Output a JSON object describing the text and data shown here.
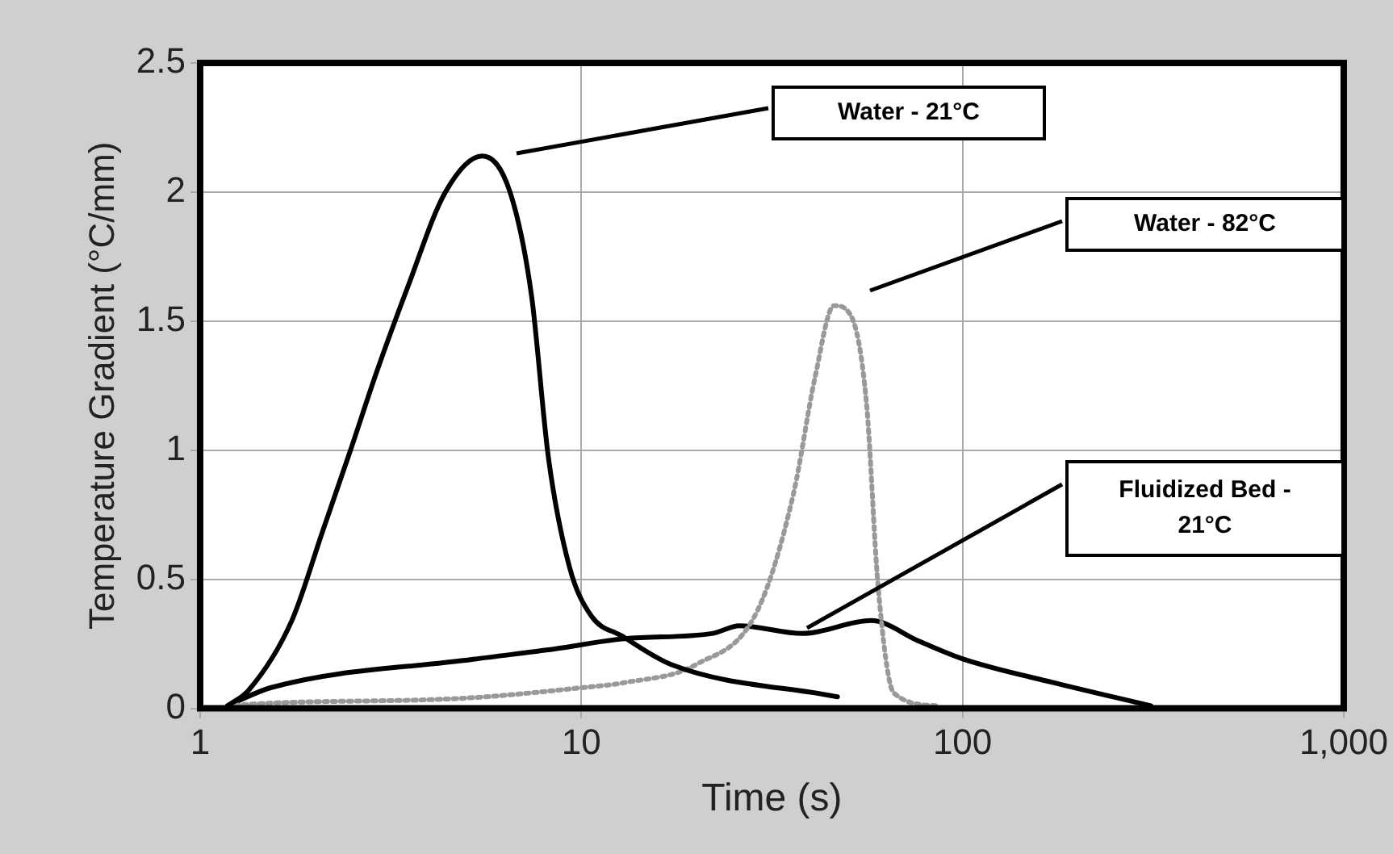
{
  "chart_data": {
    "type": "line",
    "xlabel": "Time (s)",
    "ylabel": "Temperature Gradient (°C/mm)",
    "log": "x",
    "xlim": [
      1,
      1000
    ],
    "xticks": [
      1,
      10,
      100,
      {
        "value": 1000,
        "label": "1,000"
      }
    ],
    "ylim": [
      0,
      2.5
    ],
    "yticks": [
      0,
      0.5,
      1,
      1.5,
      2,
      2.5
    ],
    "grid": true,
    "legend": false,
    "marker": "none",
    "series": [
      {
        "color": "#000000",
        "x": [
          1.18,
          1.34,
          1.74,
          2.1,
          2.48,
          2.9,
          3.5,
          4.4,
          5.5,
          6.5,
          7.4,
          8.2,
          9.3,
          10.6,
          12.8,
          17.2,
          47
        ],
        "values": [
          0.01,
          0.07,
          0.34,
          0.69,
          1.0,
          1.3,
          1.63,
          2.0,
          2.14,
          2.0,
          1.6,
          0.97,
          0.55,
          0.36,
          0.28,
          0.17,
          0.045
        ]
      },
      {
        "color": "#999999",
        "line_style": "dotted",
        "x": [
          1.18,
          1.5,
          5,
          10,
          13,
          20,
          29,
          36,
          41,
          46,
          51,
          56,
          60,
          66,
          86
        ],
        "values": [
          0.01,
          0.02,
          0.04,
          0.08,
          0.1,
          0.17,
          0.38,
          0.83,
          1.28,
          1.56,
          1.52,
          1.18,
          0.48,
          0.06,
          0.01
        ]
      },
      {
        "color": "#000000",
        "x": [
          1.18,
          1.53,
          5.2,
          8.5,
          13,
          22,
          26,
          38,
          57.6,
          77,
          101,
          173,
          312
        ],
        "values": [
          0.01,
          0.08,
          0.19,
          0.23,
          0.27,
          0.29,
          0.32,
          0.29,
          0.34,
          0.26,
          0.19,
          0.1,
          0.01
        ]
      }
    ],
    "annotations": [
      "Water - 21°C",
      "Water - 82°C",
      "Fluidized Bed - 21°C"
    ]
  }
}
